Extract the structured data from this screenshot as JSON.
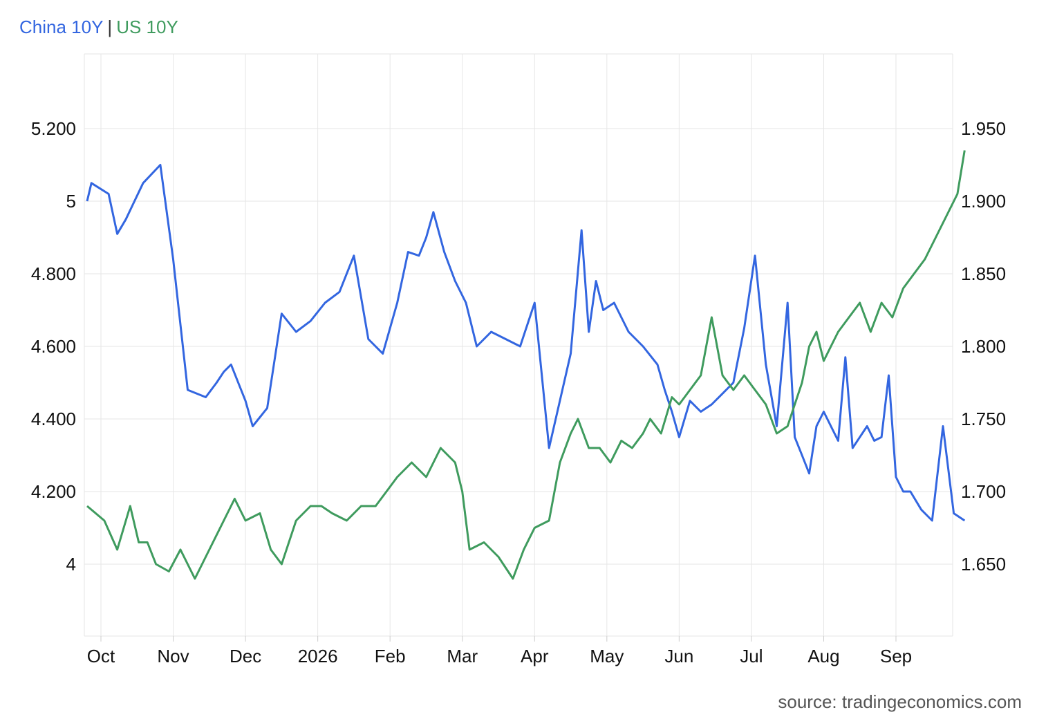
{
  "legend": {
    "series_a": "China 10Y",
    "separator": "|",
    "series_b": "US 10Y"
  },
  "source": "source: tradingeconomics.com",
  "colors": {
    "china": "#3366e0",
    "us": "#3f9b5e",
    "grid": "#e6e6e6",
    "axis": "#cccccc"
  },
  "chart_data": {
    "type": "line",
    "x_ticks": [
      "Oct",
      "Nov",
      "Dec",
      "2026",
      "Feb",
      "Mar",
      "Apr",
      "May",
      "Jun",
      "Jul",
      "Aug",
      "Sep"
    ],
    "left_axis": {
      "ticks": [
        "5.200",
        "5",
        "4.800",
        "4.600",
        "4.400",
        "4.200",
        "4"
      ],
      "ylim": [
        3.8,
        5.4
      ]
    },
    "right_axis": {
      "ticks": [
        "1.950",
        "1.900",
        "1.850",
        "1.800",
        "1.750",
        "1.700",
        "1.650"
      ],
      "ylim": [
        1.6,
        1.98
      ]
    },
    "grid": true,
    "series": [
      {
        "name": "China 10Y",
        "axis": "left",
        "x": [
          0.0,
          0.05,
          0.25,
          0.35,
          0.45,
          0.55,
          0.65,
          0.85,
          1.0,
          1.2,
          1.45,
          1.6,
          1.7,
          1.8,
          1.9,
          2.0,
          2.1,
          2.3,
          2.5,
          2.7,
          2.9,
          3.1,
          3.3,
          3.5,
          3.7,
          3.9,
          4.1,
          4.25,
          4.4,
          4.5,
          4.6,
          4.75,
          4.9,
          5.05,
          5.2,
          5.4,
          5.6,
          5.8,
          6.0,
          6.2,
          6.5,
          6.65,
          6.75,
          6.85,
          6.95,
          7.1,
          7.3,
          7.5,
          7.7,
          7.8,
          7.9,
          8.0,
          8.15,
          8.3,
          8.45,
          8.6,
          8.75,
          8.9,
          9.05,
          9.2,
          9.35,
          9.5,
          9.6,
          9.7,
          9.8,
          9.9,
          10.0,
          10.1,
          10.2,
          10.3,
          10.4,
          10.5,
          10.6,
          10.7,
          10.8,
          10.9,
          11.0,
          11.1,
          11.2,
          11.35,
          11.5,
          11.65,
          11.8,
          11.95
        ],
        "y": [
          5.0,
          5.05,
          5.02,
          4.91,
          4.95,
          5.0,
          5.05,
          5.1,
          4.84,
          4.48,
          4.46,
          4.5,
          4.53,
          4.55,
          4.5,
          4.45,
          4.38,
          4.43,
          4.69,
          4.64,
          4.67,
          4.72,
          4.75,
          4.85,
          4.62,
          4.58,
          4.72,
          4.86,
          4.85,
          4.9,
          4.97,
          4.86,
          4.78,
          4.72,
          4.6,
          4.64,
          4.62,
          4.6,
          4.72,
          4.32,
          4.58,
          4.92,
          4.64,
          4.78,
          4.7,
          4.72,
          4.64,
          4.6,
          4.55,
          4.48,
          4.42,
          4.35,
          4.45,
          4.42,
          4.44,
          4.47,
          4.5,
          4.65,
          4.85,
          4.55,
          4.38,
          4.72,
          4.35,
          4.3,
          4.25,
          4.38,
          4.42,
          4.38,
          4.34,
          4.57,
          4.32,
          4.35,
          4.38,
          4.34,
          4.35,
          4.52,
          4.24,
          4.2,
          4.2,
          4.15,
          4.12,
          4.38,
          4.14,
          4.12
        ]
      },
      {
        "name": "US 10Y",
        "axis": "right",
        "x": [
          0.0,
          0.2,
          0.35,
          0.5,
          0.6,
          0.7,
          0.8,
          0.95,
          1.1,
          1.3,
          1.5,
          1.7,
          1.85,
          2.0,
          2.2,
          2.35,
          2.5,
          2.7,
          2.9,
          3.05,
          3.2,
          3.4,
          3.6,
          3.8,
          3.95,
          4.1,
          4.3,
          4.5,
          4.7,
          4.9,
          5.0,
          5.1,
          5.3,
          5.5,
          5.7,
          5.85,
          6.0,
          6.2,
          6.35,
          6.5,
          6.6,
          6.75,
          6.9,
          7.05,
          7.2,
          7.35,
          7.5,
          7.6,
          7.75,
          7.9,
          8.0,
          8.15,
          8.3,
          8.45,
          8.6,
          8.75,
          8.9,
          9.05,
          9.2,
          9.35,
          9.5,
          9.6,
          9.7,
          9.8,
          9.9,
          10.0,
          10.1,
          10.2,
          10.35,
          10.5,
          10.65,
          10.8,
          10.95,
          11.1,
          11.25,
          11.4,
          11.55,
          11.7,
          11.85,
          11.95
        ],
        "y": [
          1.69,
          1.68,
          1.66,
          1.69,
          1.665,
          1.665,
          1.65,
          1.645,
          1.66,
          1.64,
          1.66,
          1.68,
          1.695,
          1.68,
          1.685,
          1.66,
          1.65,
          1.68,
          1.69,
          1.69,
          1.685,
          1.68,
          1.69,
          1.69,
          1.7,
          1.71,
          1.72,
          1.71,
          1.73,
          1.72,
          1.7,
          1.66,
          1.665,
          1.655,
          1.64,
          1.66,
          1.675,
          1.68,
          1.72,
          1.74,
          1.75,
          1.73,
          1.73,
          1.72,
          1.735,
          1.73,
          1.74,
          1.75,
          1.74,
          1.765,
          1.76,
          1.77,
          1.78,
          1.82,
          1.78,
          1.77,
          1.78,
          1.77,
          1.76,
          1.74,
          1.745,
          1.76,
          1.775,
          1.8,
          1.81,
          1.79,
          1.8,
          1.81,
          1.82,
          1.83,
          1.81,
          1.83,
          1.82,
          1.84,
          1.85,
          1.86,
          1.875,
          1.89,
          1.905,
          1.935
        ]
      }
    ]
  }
}
